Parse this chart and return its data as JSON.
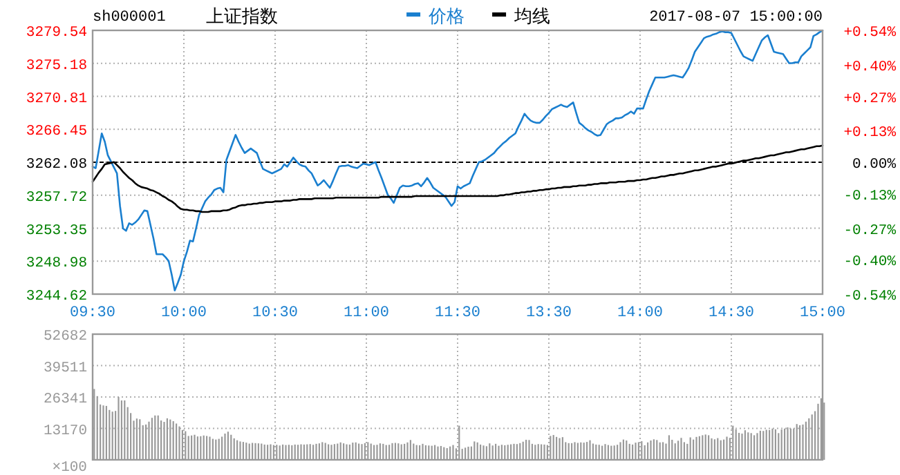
{
  "chart_data": [
    {
      "type": "line",
      "title": "上证指数",
      "subtitle": "sh000001",
      "annotations": [
        "2017-08-07 15:00:00"
      ],
      "legend": "top",
      "grid": true,
      "categories": [
        "09:30",
        null,
        null,
        null,
        null,
        null,
        null,
        null,
        null,
        null,
        null,
        null,
        null,
        null,
        null,
        null,
        null,
        null,
        null,
        null,
        null,
        null,
        null,
        null,
        null,
        null,
        null,
        null,
        null,
        null,
        "10:00",
        null,
        null,
        null,
        null,
        null,
        null,
        null,
        null,
        null,
        null,
        null,
        null,
        null,
        null,
        null,
        null,
        null,
        null,
        null,
        null,
        null,
        null,
        null,
        null,
        null,
        null,
        null,
        null,
        null,
        "10:30",
        null,
        null,
        null,
        null,
        null,
        null,
        null,
        null,
        null,
        null,
        null,
        null,
        null,
        null,
        null,
        null,
        null,
        null,
        null,
        null,
        null,
        null,
        null,
        null,
        null,
        null,
        null,
        null,
        null,
        "11:00",
        null,
        null,
        null,
        null,
        null,
        null,
        null,
        null,
        null,
        null,
        null,
        null,
        null,
        null,
        null,
        null,
        null,
        null,
        null,
        null,
        null,
        null,
        null,
        null,
        null,
        null,
        null,
        null,
        null,
        "11:30",
        null,
        null,
        null,
        null,
        null,
        null,
        null,
        null,
        null,
        null,
        null,
        null,
        null,
        null,
        null,
        null,
        null,
        null,
        null,
        null,
        null,
        null,
        null,
        null,
        null,
        null,
        null,
        null,
        null,
        "13:30",
        null,
        null,
        null,
        null,
        null,
        null,
        null,
        null,
        null,
        null,
        null,
        null,
        null,
        null,
        null,
        null,
        null,
        null,
        null,
        null,
        null,
        null,
        null,
        null,
        null,
        null,
        null,
        null,
        null,
        "14:00",
        null,
        null,
        null,
        null,
        null,
        null,
        null,
        null,
        null,
        null,
        null,
        null,
        null,
        null,
        null,
        null,
        null,
        null,
        null,
        null,
        null,
        null,
        null,
        null,
        null,
        null,
        null,
        null,
        null,
        "14:30",
        null,
        null,
        null,
        null,
        null,
        null,
        null,
        null,
        null,
        null,
        null,
        null,
        null,
        null,
        null,
        null,
        null,
        null,
        null,
        null,
        null,
        null,
        null,
        null,
        null,
        null,
        null,
        null,
        null,
        "15:00"
      ],
      "ylim": [
        3244.62,
        3279.54
      ],
      "yticks": [
        3244.62,
        3248.98,
        3253.35,
        3257.72,
        3262.08,
        3266.45,
        3270.81,
        3275.18,
        3279.54
      ],
      "y2lim": [
        -0.54,
        0.54
      ],
      "y2ticks": [
        {
          "value": -0.54,
          "label": "-0.54%"
        },
        {
          "value": -0.4,
          "label": "-0.40%"
        },
        {
          "value": -0.27,
          "label": "-0.27%"
        },
        {
          "value": -0.13,
          "label": "-0.13%"
        },
        {
          "value": 0,
          "label": "0.00%"
        },
        {
          "value": 0.13,
          "label": "+0.13%"
        },
        {
          "value": 0.27,
          "label": "+0.27%"
        },
        {
          "value": 0.4,
          "label": "+0.40%"
        },
        {
          "value": 0.54,
          "label": "+0.54%"
        }
      ],
      "ref_lines": [
        {
          "axis": "y",
          "value": 3262.08,
          "color": "#000000",
          "line_style": "dashed"
        }
      ],
      "series": [
        {
          "name": "价格",
          "color": "#1a7fcf",
          "values": [
            3261.5,
            3261.3,
            3263.6,
            3265.9,
            3264.8,
            3263.0,
            3262.2,
            3261.4,
            3260.6,
            3256.3,
            3253.3,
            3253.0,
            3254.0,
            3253.8,
            3254.1,
            3254.5,
            3255.1,
            3255.7,
            3255.6,
            3253.8,
            3252.0,
            3249.9,
            3249.9,
            3249.9,
            3249.5,
            3249.0,
            3247.2,
            3245.1,
            3246.1,
            3247.2,
            3249.0,
            3250.2,
            3251.7,
            3251.6,
            3253.3,
            3255.1,
            3256.0,
            3256.9,
            3257.4,
            3257.8,
            3258.4,
            3258.6,
            3258.7,
            3258.1,
            3262.4,
            3263.5,
            3264.6,
            3265.7,
            3264.8,
            3264.0,
            3263.3,
            3263.6,
            3263.9,
            3263.6,
            3263.3,
            3262.2,
            3261.2,
            3261.0,
            3260.8,
            3260.6,
            3260.8,
            3261.0,
            3261.2,
            3261.8,
            3261.5,
            3262.1,
            3262.7,
            3262.2,
            3261.8,
            3261.6,
            3261.5,
            3261.0,
            3260.6,
            3259.8,
            3259.0,
            3259.3,
            3259.7,
            3259.2,
            3258.7,
            3259.6,
            3260.6,
            3261.5,
            3261.6,
            3261.6,
            3261.7,
            3261.5,
            3261.4,
            3261.3,
            3261.6,
            3261.9,
            3261.8,
            3261.7,
            3261.9,
            3262.1,
            3261.0,
            3260.0,
            3258.9,
            3257.8,
            3257.3,
            3256.7,
            3257.7,
            3258.7,
            3259.0,
            3258.9,
            3258.9,
            3259.0,
            3259.2,
            3259.3,
            3258.9,
            3259.4,
            3260.0,
            3259.4,
            3258.7,
            3258.4,
            3258.1,
            3257.8,
            3257.5,
            3256.9,
            3256.3,
            3256.8,
            3258.9,
            3258.6,
            3258.9,
            3259.1,
            3259.3,
            3260.3,
            3261.2,
            3262.1,
            3262.2,
            3262.4,
            3262.7,
            3263.0,
            3263.3,
            3263.8,
            3264.2,
            3264.6,
            3264.9,
            3265.3,
            3265.6,
            3265.9,
            3266.8,
            3267.6,
            3268.5,
            3268.0,
            3267.6,
            3267.4,
            3267.3,
            3267.3,
            3267.7,
            3268.2,
            3268.6,
            3269.1,
            3269.3,
            3269.5,
            3269.7,
            3269.5,
            3269.4,
            3269.7,
            3270.0,
            3268.6,
            3267.3,
            3267.0,
            3266.6,
            3266.3,
            3266.1,
            3265.8,
            3265.6,
            3265.7,
            3266.4,
            3267.1,
            3267.4,
            3267.6,
            3267.9,
            3267.9,
            3268.0,
            3268.3,
            3268.5,
            3268.8,
            3268.5,
            3269.2,
            3269.2,
            3269.2,
            3270.4,
            3271.5,
            3272.4,
            3273.3,
            3273.3,
            3273.3,
            3273.3,
            3273.4,
            3273.5,
            3273.6,
            3273.5,
            3273.4,
            3273.3,
            3273.9,
            3274.6,
            3275.6,
            3276.7,
            3277.3,
            3277.9,
            3278.5,
            3278.7,
            3278.8,
            3279.0,
            3279.1,
            3279.3,
            3279.4,
            3279.3,
            3279.3,
            3279.2,
            3278.4,
            3277.6,
            3276.8,
            3276.1,
            3275.9,
            3275.7,
            3275.5,
            3276.4,
            3277.3,
            3278.2,
            3278.6,
            3278.9,
            3277.8,
            3276.7,
            3276.6,
            3276.5,
            3276.4,
            3275.8,
            3275.2,
            3275.2,
            3275.3,
            3275.3,
            3276.1,
            3276.5,
            3276.9,
            3277.3,
            3278.8,
            3279.0,
            3279.3,
            3279.5
          ]
        },
        {
          "name": "均线",
          "color": "#000000",
          "values": [
            3259.5,
            3260.1,
            3260.7,
            3261.2,
            3261.8,
            3261.9,
            3262.0,
            3262.1,
            3261.7,
            3261.3,
            3260.8,
            3260.4,
            3260.0,
            3259.7,
            3259.3,
            3259.0,
            3258.8,
            3258.7,
            3258.6,
            3258.4,
            3258.3,
            3258.1,
            3257.9,
            3257.6,
            3257.4,
            3257.1,
            3256.9,
            3256.6,
            3256.2,
            3255.9,
            3255.8,
            3255.8,
            3255.7,
            3255.7,
            3255.6,
            3255.6,
            3255.5,
            3255.5,
            3255.5,
            3255.6,
            3255.6,
            3255.6,
            3255.6,
            3255.7,
            3255.7,
            3255.8,
            3256.0,
            3256.1,
            3256.3,
            3256.4,
            3256.4,
            3256.5,
            3256.5,
            3256.6,
            3256.6,
            3256.7,
            3256.7,
            3256.8,
            3256.8,
            3256.8,
            3256.9,
            3256.9,
            3256.9,
            3257.0,
            3257.0,
            3257.0,
            3257.1,
            3257.1,
            3257.2,
            3257.2,
            3257.2,
            3257.2,
            3257.2,
            3257.3,
            3257.3,
            3257.3,
            3257.3,
            3257.3,
            3257.3,
            3257.3,
            3257.4,
            3257.4,
            3257.4,
            3257.4,
            3257.4,
            3257.4,
            3257.4,
            3257.4,
            3257.4,
            3257.4,
            3257.4,
            3257.4,
            3257.4,
            3257.4,
            3257.4,
            3257.5,
            3257.5,
            3257.5,
            3257.5,
            3257.5,
            3257.5,
            3257.5,
            3257.5,
            3257.5,
            3257.5,
            3257.5,
            3257.6,
            3257.6,
            3257.6,
            3257.6,
            3257.6,
            3257.6,
            3257.6,
            3257.6,
            3257.6,
            3257.6,
            3257.6,
            3257.6,
            3257.6,
            3257.6,
            3257.6,
            3257.6,
            3257.6,
            3257.6,
            3257.6,
            3257.6,
            3257.6,
            3257.6,
            3257.6,
            3257.6,
            3257.6,
            3257.6,
            3257.6,
            3257.6,
            3257.7,
            3257.7,
            3257.8,
            3257.8,
            3257.9,
            3258.0,
            3258.0,
            3258.1,
            3258.1,
            3258.2,
            3258.2,
            3258.3,
            3258.3,
            3258.4,
            3258.4,
            3258.5,
            3258.5,
            3258.6,
            3258.6,
            3258.7,
            3258.7,
            3258.8,
            3258.8,
            3258.8,
            3258.9,
            3258.9,
            3259.0,
            3259.0,
            3259.0,
            3259.1,
            3259.1,
            3259.2,
            3259.2,
            3259.3,
            3259.3,
            3259.3,
            3259.4,
            3259.4,
            3259.4,
            3259.5,
            3259.5,
            3259.5,
            3259.6,
            3259.6,
            3259.6,
            3259.7,
            3259.7,
            3259.8,
            3259.8,
            3259.9,
            3260.0,
            3260.0,
            3260.1,
            3260.2,
            3260.2,
            3260.3,
            3260.4,
            3260.4,
            3260.5,
            3260.6,
            3260.6,
            3260.7,
            3260.8,
            3260.9,
            3261.0,
            3261.0,
            3261.1,
            3261.2,
            3261.3,
            3261.4,
            3261.5,
            3261.5,
            3261.6,
            3261.7,
            3261.8,
            3261.9,
            3261.9,
            3262.0,
            3262.1,
            3262.2,
            3262.3,
            3262.3,
            3262.4,
            3262.5,
            3262.6,
            3262.6,
            3262.7,
            3262.8,
            3262.9,
            3263.0,
            3263.0,
            3263.1,
            3263.2,
            3263.3,
            3263.4,
            3263.4,
            3263.5,
            3263.6,
            3263.7,
            3263.8,
            3263.8,
            3263.9,
            3264.0,
            3264.1,
            3264.2,
            3264.2,
            3264.3
          ]
        }
      ]
    },
    {
      "type": "bar",
      "grid": true,
      "tick_labels": "y",
      "color": "#999999",
      "ylabel": "×100",
      "categories": [
        null,
        null,
        null,
        null,
        null,
        null,
        null,
        null,
        null,
        null,
        null,
        null,
        null,
        null,
        null,
        null,
        null,
        null,
        null,
        null,
        null,
        null,
        null,
        null,
        null,
        null,
        null,
        null,
        null,
        null,
        null,
        null,
        null,
        null,
        null,
        null,
        null,
        null,
        null,
        null,
        null,
        null,
        null,
        null,
        null,
        null,
        null,
        null,
        null,
        null,
        null,
        null,
        null,
        null,
        null,
        null,
        null,
        null,
        null,
        null,
        null,
        null,
        null,
        null,
        null,
        null,
        null,
        null,
        null,
        null,
        null,
        null,
        null,
        null,
        null,
        null,
        null,
        null,
        null,
        null,
        null,
        null,
        null,
        null,
        null,
        null,
        null,
        null,
        null,
        null,
        null,
        null,
        null,
        null,
        null,
        null,
        null,
        null,
        null,
        null,
        null,
        null,
        null,
        null,
        null,
        null,
        null,
        null,
        null,
        null,
        null,
        null,
        null,
        null,
        null,
        null,
        null,
        null,
        null,
        null,
        null,
        null,
        null,
        null,
        null,
        null,
        null,
        null,
        null,
        null,
        null,
        null,
        null,
        null,
        null,
        null,
        null,
        null,
        null,
        null,
        null,
        null,
        null,
        null,
        null,
        null,
        null,
        null,
        null,
        null,
        null,
        null,
        null,
        null,
        null,
        null,
        null,
        null,
        null,
        null,
        null,
        null,
        null,
        null,
        null,
        null,
        null,
        null,
        null,
        null,
        null,
        null,
        null,
        null,
        null,
        null,
        null,
        null,
        null,
        null,
        null,
        null,
        null,
        null,
        null,
        null,
        null,
        null,
        null,
        null,
        null,
        null,
        null,
        null,
        null,
        null,
        null,
        null,
        null,
        null,
        null,
        null,
        null,
        null,
        null,
        null,
        null,
        null,
        null,
        null,
        null,
        null,
        null,
        null,
        null,
        null,
        null,
        null,
        null,
        null,
        null,
        null,
        null,
        null,
        null,
        null,
        null,
        null,
        null,
        null,
        null,
        null,
        null,
        null,
        null,
        null,
        null,
        null,
        null,
        null,
        null
      ],
      "ylim": [
        0,
        52682
      ],
      "yticks": [
        13170,
        26341,
        39511,
        52682
      ],
      "values": [
        29700,
        26700,
        23200,
        22800,
        22600,
        20900,
        20200,
        20500,
        26300,
        24900,
        24900,
        22100,
        19600,
        16400,
        17300,
        17000,
        14500,
        14800,
        16000,
        17600,
        18600,
        18600,
        16500,
        15900,
        17400,
        16900,
        16200,
        15200,
        14000,
        12500,
        12000,
        10000,
        10200,
        10500,
        9800,
        9900,
        10200,
        10000,
        9700,
        8800,
        8500,
        8800,
        9700,
        11000,
        11800,
        10500,
        9000,
        8200,
        7700,
        7500,
        7200,
        6800,
        7100,
        7000,
        6900,
        6800,
        6400,
        6300,
        6500,
        6200,
        6300,
        6000,
        6400,
        6200,
        6300,
        6100,
        6400,
        6300,
        6500,
        6400,
        6500,
        6600,
        6300,
        6700,
        6900,
        7400,
        7100,
        6500,
        6300,
        6600,
        6800,
        7300,
        6900,
        6500,
        6400,
        7200,
        7300,
        6800,
        6600,
        7000,
        7400,
        6800,
        6200,
        6300,
        6900,
        6700,
        6200,
        6300,
        7000,
        7100,
        6900,
        6500,
        6700,
        7300,
        8300,
        6800,
        6200,
        6100,
        6700,
        6100,
        6000,
        5900,
        6200,
        5600,
        5800,
        5300,
        4900,
        5600,
        6200,
        4800,
        14300,
        4600,
        5100,
        5500,
        5600,
        7700,
        7300,
        6400,
        6000,
        5700,
        6900,
        6000,
        6700,
        5900,
        6300,
        6100,
        6300,
        6500,
        6700,
        6600,
        7000,
        7600,
        8400,
        8300,
        6700,
        6300,
        6600,
        6500,
        6400,
        6200,
        10000,
        10400,
        9600,
        9100,
        9500,
        7400,
        7000,
        7000,
        7400,
        7100,
        7300,
        7200,
        7500,
        8200,
        6800,
        6400,
        6300,
        5900,
        6600,
        6200,
        5900,
        6000,
        6300,
        7400,
        8500,
        8100,
        6700,
        6400,
        7200,
        7400,
        7800,
        6100,
        7300,
        8100,
        8600,
        8300,
        7300,
        7400,
        6800,
        10300,
        8400,
        6900,
        8000,
        9200,
        7400,
        6700,
        9400,
        8500,
        9600,
        9900,
        10300,
        10600,
        10300,
        9000,
        8600,
        9100,
        8200,
        8500,
        9700,
        9200,
        14300,
        12800,
        11300,
        11000,
        12400,
        11500,
        11200,
        10300,
        11200,
        12200,
        12100,
        12600,
        12500,
        13100,
        12800,
        11200,
        12700,
        13100,
        13600,
        13100,
        13100,
        15000,
        14500,
        14800,
        16000,
        17400,
        19000,
        20400,
        23500,
        25800,
        24000
      ]
    }
  ]
}
